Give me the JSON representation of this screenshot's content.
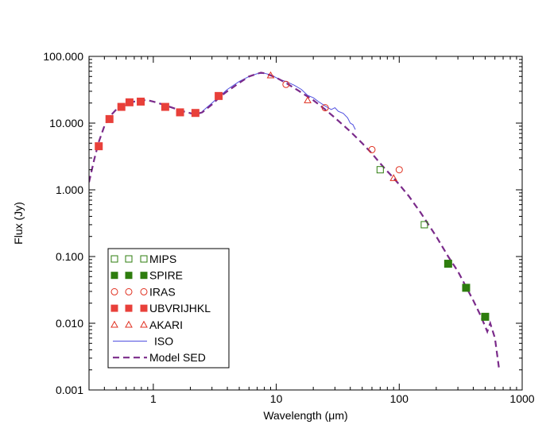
{
  "chart_data": {
    "type": "scatter",
    "title": "",
    "xlabel": "Wavelength (μm)",
    "ylabel": "Flux (Jy)",
    "xscale": "log",
    "yscale": "log",
    "xlim": [
      0.3,
      1000
    ],
    "ylim": [
      0.001,
      100
    ],
    "x_ticks": [
      {
        "value": 1,
        "label": "1"
      },
      {
        "value": 10,
        "label": "10"
      },
      {
        "value": 100,
        "label": "100"
      },
      {
        "value": 1000,
        "label": "1000"
      }
    ],
    "y_ticks": [
      {
        "value": 0.001,
        "label": "0.001"
      },
      {
        "value": 0.01,
        "label": "0.010"
      },
      {
        "value": 0.1,
        "label": "0.100"
      },
      {
        "value": 1,
        "label": "1.000"
      },
      {
        "value": 10,
        "label": "10.000"
      },
      {
        "value": 100,
        "label": "100.000"
      }
    ],
    "legend_position": "bottom-left",
    "series": [
      {
        "name": "MIPS",
        "marker": "open-square",
        "color": "#2e7d0e",
        "points": [
          [
            70,
            2.0
          ],
          [
            160,
            0.3
          ]
        ]
      },
      {
        "name": "SPIRE",
        "marker": "filled-square",
        "color": "#2e7d0e",
        "points": [
          [
            250,
            0.078
          ],
          [
            350,
            0.034
          ],
          [
            500,
            0.0125
          ]
        ]
      },
      {
        "name": "IRAS",
        "marker": "open-circle",
        "color": "#e03020",
        "points": [
          [
            12,
            38
          ],
          [
            25,
            17
          ],
          [
            60,
            4.0
          ],
          [
            100,
            2.0
          ]
        ]
      },
      {
        "name": "UBVRIJHKL",
        "marker": "filled-square",
        "color": "#e8403a",
        "points": [
          [
            0.36,
            4.5
          ],
          [
            0.44,
            11.5
          ],
          [
            0.55,
            17.5
          ],
          [
            0.64,
            20.5
          ],
          [
            0.79,
            21
          ],
          [
            1.25,
            17.5
          ],
          [
            1.65,
            14.5
          ],
          [
            2.2,
            14.2
          ],
          [
            3.4,
            25.5
          ]
        ]
      },
      {
        "name": "AKARI",
        "marker": "open-triangle",
        "color": "#e03020",
        "points": [
          [
            9,
            52
          ],
          [
            18,
            22
          ],
          [
            90,
            1.5
          ]
        ]
      },
      {
        "name": "ISO",
        "marker": "line",
        "color": "#5050e0",
        "points": [
          [
            2.5,
            15
          ],
          [
            3,
            20
          ],
          [
            4,
            32
          ],
          [
            5,
            42
          ],
          [
            6,
            50
          ],
          [
            7,
            55
          ],
          [
            8,
            56
          ],
          [
            9,
            53
          ],
          [
            10,
            48
          ],
          [
            11,
            44
          ],
          [
            12,
            42
          ],
          [
            14,
            37
          ],
          [
            16,
            32
          ],
          [
            18,
            26
          ],
          [
            20,
            24
          ],
          [
            22,
            21
          ],
          [
            25,
            18
          ],
          [
            28,
            16
          ],
          [
            30,
            17
          ],
          [
            32,
            15
          ],
          [
            35,
            14
          ],
          [
            38,
            12
          ],
          [
            40,
            10
          ],
          [
            42,
            9.5
          ],
          [
            44,
            8
          ]
        ]
      },
      {
        "name": "Model SED",
        "marker": "dashed-line",
        "color": "#7a2a8a",
        "points": [
          [
            0.3,
            1.3
          ],
          [
            0.33,
            2.8
          ],
          [
            0.36,
            5.2
          ],
          [
            0.4,
            9
          ],
          [
            0.45,
            13
          ],
          [
            0.5,
            16
          ],
          [
            0.6,
            19
          ],
          [
            0.7,
            21
          ],
          [
            0.8,
            22
          ],
          [
            0.9,
            22
          ],
          [
            1.0,
            21
          ],
          [
            1.2,
            19
          ],
          [
            1.5,
            16.5
          ],
          [
            1.8,
            14.8
          ],
          [
            2.2,
            13.5
          ],
          [
            2.5,
            14.5
          ],
          [
            3,
            19
          ],
          [
            3.5,
            25
          ],
          [
            4,
            30
          ],
          [
            5,
            40
          ],
          [
            6,
            50
          ],
          [
            7,
            55
          ],
          [
            7.5,
            57
          ],
          [
            8,
            56
          ],
          [
            9,
            52
          ],
          [
            10,
            48
          ],
          [
            12,
            40
          ],
          [
            15,
            31
          ],
          [
            20,
            22
          ],
          [
            25,
            16
          ],
          [
            30,
            12
          ],
          [
            40,
            7.5
          ],
          [
            50,
            5
          ],
          [
            60,
            3.5
          ],
          [
            70,
            2.5
          ],
          [
            80,
            1.9
          ],
          [
            90,
            1.5
          ],
          [
            100,
            1.2
          ],
          [
            120,
            0.8
          ],
          [
            150,
            0.45
          ],
          [
            200,
            0.2
          ],
          [
            250,
            0.1
          ],
          [
            300,
            0.06
          ],
          [
            350,
            0.035
          ],
          [
            400,
            0.022
          ],
          [
            450,
            0.014
          ],
          [
            500,
            0.009
          ],
          [
            520,
            0.0075
          ],
          [
            550,
            0.01
          ],
          [
            600,
            0.006
          ],
          [
            650,
            0.002
          ]
        ]
      }
    ]
  }
}
